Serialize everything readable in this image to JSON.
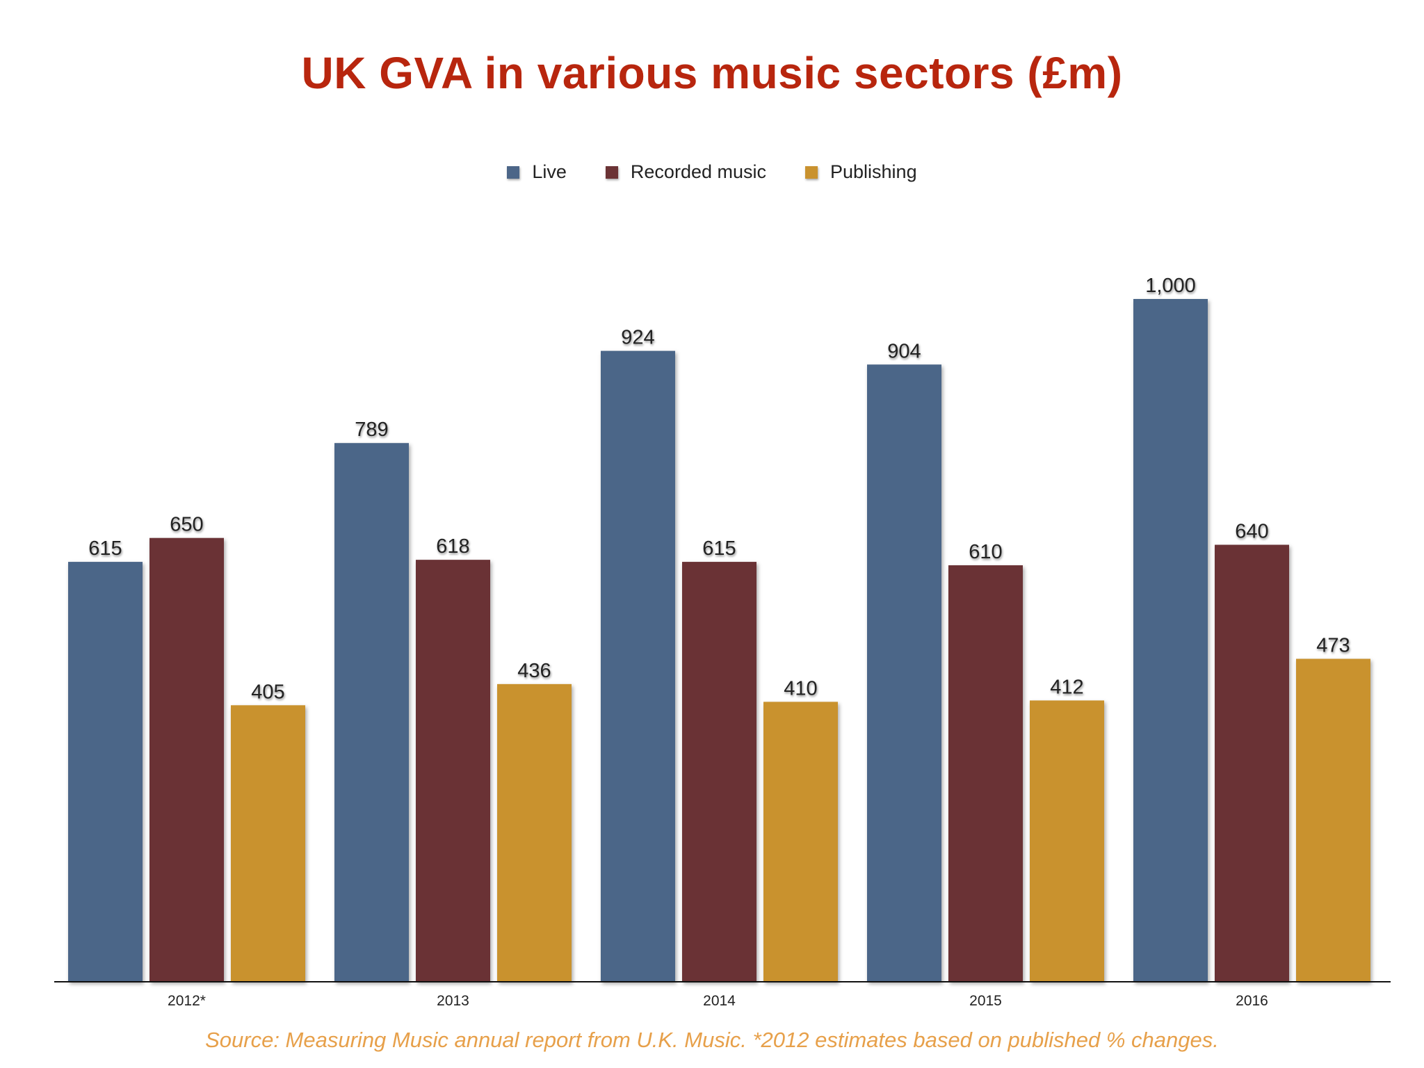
{
  "chart_data": {
    "type": "bar",
    "title": "UK GVA in various music sectors (£m)",
    "categories": [
      "2012*",
      "2013",
      "2014",
      "2015",
      "2016"
    ],
    "series": [
      {
        "name": "Live",
        "color": "#4c6688",
        "values": [
          615,
          789,
          924,
          904,
          1000
        ],
        "labels": [
          "615",
          "789",
          "924",
          "904",
          "1,000"
        ]
      },
      {
        "name": "Recorded music",
        "color": "#6b3335",
        "values": [
          650,
          618,
          615,
          610,
          640
        ],
        "labels": [
          "650",
          "618",
          "615",
          "610",
          "640"
        ]
      },
      {
        "name": "Publishing",
        "color": "#c9922f",
        "values": [
          405,
          436,
          410,
          412,
          473
        ],
        "labels": [
          "405",
          "436",
          "410",
          "412",
          "473"
        ]
      }
    ],
    "xlabel": "",
    "ylabel": "",
    "ylim": [
      0,
      1000
    ],
    "grid": false,
    "legend_position": "top-center",
    "data_labels": true,
    "source_note": "Source: Measuring Music annual report from U.K. Music. *2012 estimates based on published % changes."
  }
}
